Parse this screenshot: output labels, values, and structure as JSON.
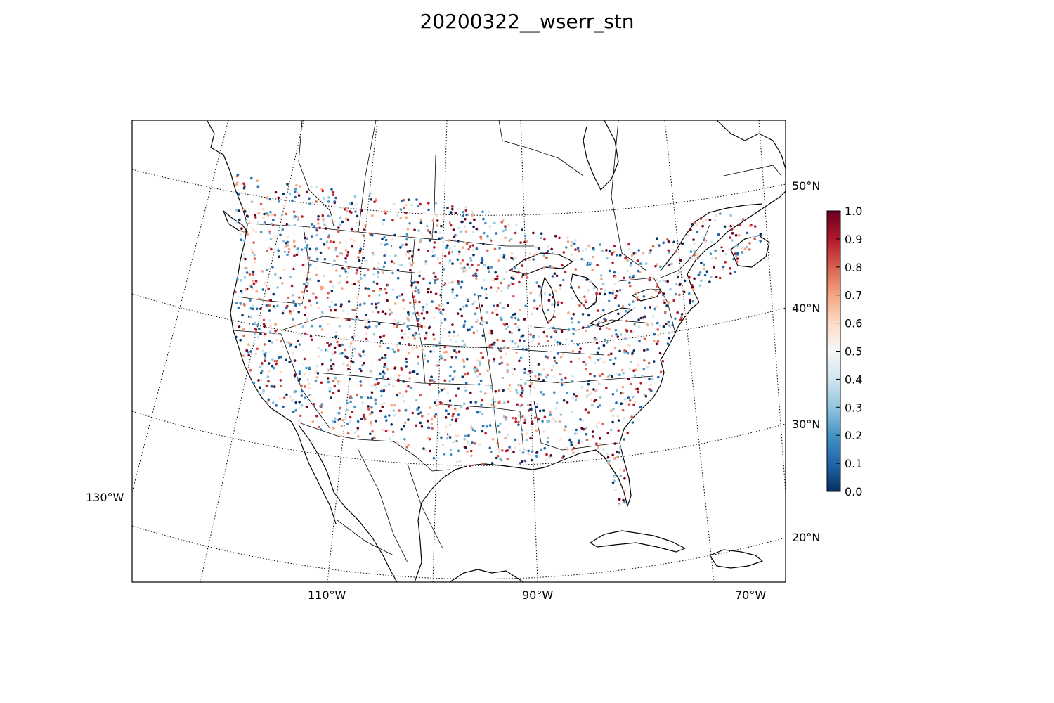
{
  "title": "20200322__wserr_stn",
  "map": {
    "projection": "lambert-conformal",
    "parallel_labels": [
      "50°N",
      "40°N",
      "30°N",
      "20°N"
    ],
    "meridian_labels": [
      "130°W",
      "110°W",
      "90°W",
      "70°W"
    ],
    "colormap": "RdBu_r",
    "colors": {
      "low": "#053061",
      "mid": "#f7f7f7",
      "high": "#67001f"
    }
  },
  "colorbar": {
    "min": 0.0,
    "max": 1.0,
    "ticks": [
      "0.0",
      "0.1",
      "0.2",
      "0.3",
      "0.4",
      "0.5",
      "0.6",
      "0.7",
      "0.8",
      "0.9",
      "1.0"
    ]
  }
}
